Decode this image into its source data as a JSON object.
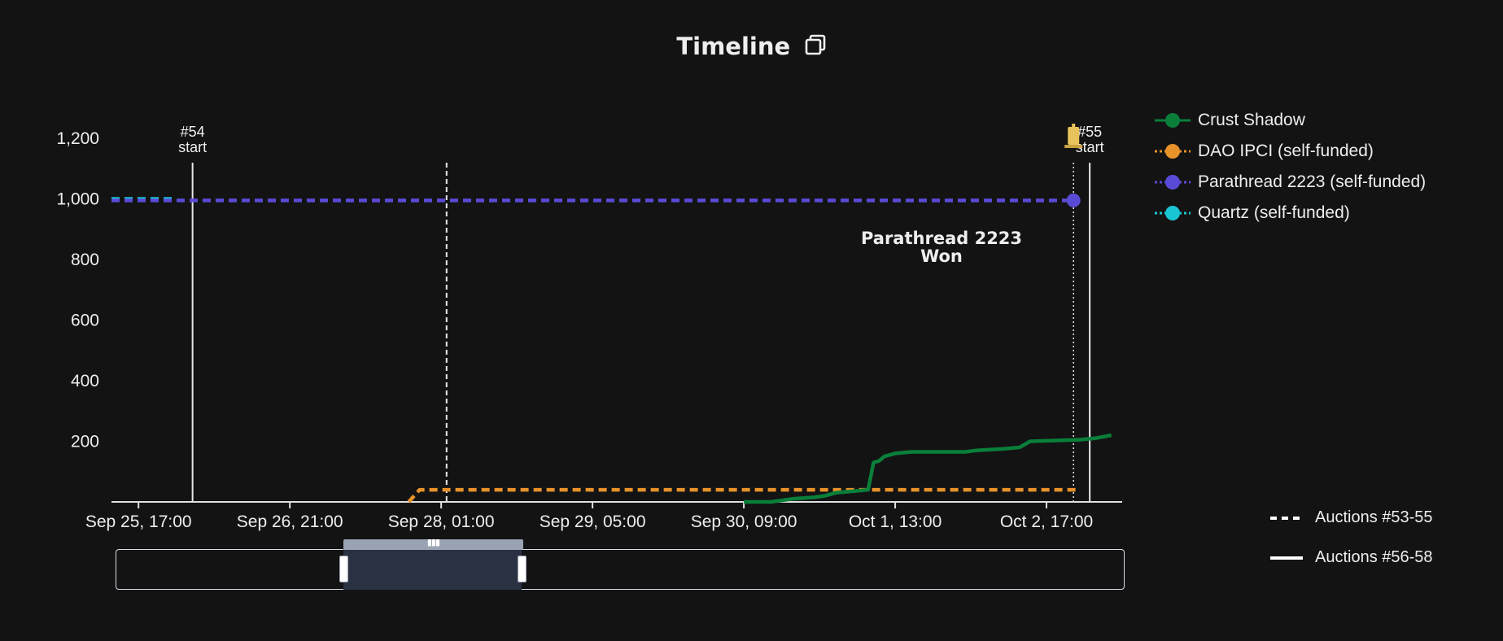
{
  "title": "Timeline",
  "icons": {
    "copy": "copy-icon",
    "trophy": "trophy-icon"
  },
  "chart_data": {
    "type": "line",
    "title": "Timeline",
    "xlabel": "",
    "ylabel": "",
    "x_ticks": [
      "Sep 25, 17:00",
      "Sep 26, 21:00",
      "Sep 28, 01:00",
      "Sep 29, 05:00",
      "Sep 30, 09:00",
      "Oct 1, 13:00",
      "Oct 2, 17:00"
    ],
    "x_range": [
      "Sep 25, 12:00",
      "Oct 3, 07:00"
    ],
    "y_ticks": [
      200,
      400,
      600,
      800,
      1000,
      1200
    ],
    "ylim": [
      0,
      1200
    ],
    "grid": false,
    "legend_position": "right",
    "series": [
      {
        "name": "Crust Shadow",
        "color": "#0a7f3a",
        "line_style": "solid",
        "points": [
          [
            "Sep 30, 09:00",
            0
          ],
          [
            "Sep 30, 14:00",
            0
          ],
          [
            "Sep 30, 18:00",
            10
          ],
          [
            "Sep 30, 22:00",
            15
          ],
          [
            "Oct 1, 00:00",
            20
          ],
          [
            "Oct 1, 02:00",
            30
          ],
          [
            "Oct 1, 05:00",
            35
          ],
          [
            "Oct 1, 08:00",
            40
          ],
          [
            "Oct 1, 09:00",
            130
          ],
          [
            "Oct 1, 10:00",
            135
          ],
          [
            "Oct 1, 11:00",
            150
          ],
          [
            "Oct 1, 13:00",
            160
          ],
          [
            "Oct 1, 16:00",
            165
          ],
          [
            "Oct 2, 02:00",
            165
          ],
          [
            "Oct 2, 04:00",
            170
          ],
          [
            "Oct 2, 09:00",
            175
          ],
          [
            "Oct 2, 12:00",
            180
          ],
          [
            "Oct 2, 14:00",
            200
          ],
          [
            "Oct 2, 23:00",
            205
          ],
          [
            "Oct 3, 02:00",
            210
          ],
          [
            "Oct 3, 05:00",
            220
          ]
        ]
      },
      {
        "name": "DAO IPCI (self-funded)",
        "color": "#e8922a",
        "line_style": "dotted",
        "points": [
          [
            "Sep 27, 19:00",
            0
          ],
          [
            "Sep 27, 21:00",
            40
          ],
          [
            "Oct 2, 23:00",
            40
          ]
        ]
      },
      {
        "name": "Parathread 2223 (self-funded)",
        "color": "#5a4bd6",
        "line_style": "dotted",
        "points": [
          [
            "Sep 25, 12:00",
            995
          ],
          [
            "Oct 2, 23:00",
            995
          ]
        ]
      },
      {
        "name": "Quartz (self-funded)",
        "color": "#19c4d3",
        "line_style": "dotted",
        "points": [
          [
            "Sep 25, 12:00",
            1000
          ],
          [
            "Sep 26, 00:00",
            1000
          ]
        ]
      }
    ],
    "markers": [
      {
        "series": "Parathread 2223 (self-funded)",
        "x": "Oct 2, 22:00",
        "y": 995,
        "label": "Parathread 2223\nWon"
      }
    ],
    "vertical_lines": [
      {
        "x": "Sep 26, 03:00",
        "label": "#54\nstart",
        "style": "solid"
      },
      {
        "x": "Sep 28, 02:00",
        "label": "",
        "style": "dashed"
      },
      {
        "x": "Oct 2, 22:00",
        "label": "",
        "style": "dotted"
      },
      {
        "x": "Oct 3, 01:00",
        "label": "#55\nstart",
        "style": "solid"
      }
    ]
  },
  "style_legend": [
    {
      "label": "Auctions #53-55",
      "style": "dashed"
    },
    {
      "label": "Auctions #56-58",
      "style": "solid"
    }
  ],
  "zoom_slider": {
    "start": 0.226,
    "end": 0.403
  }
}
